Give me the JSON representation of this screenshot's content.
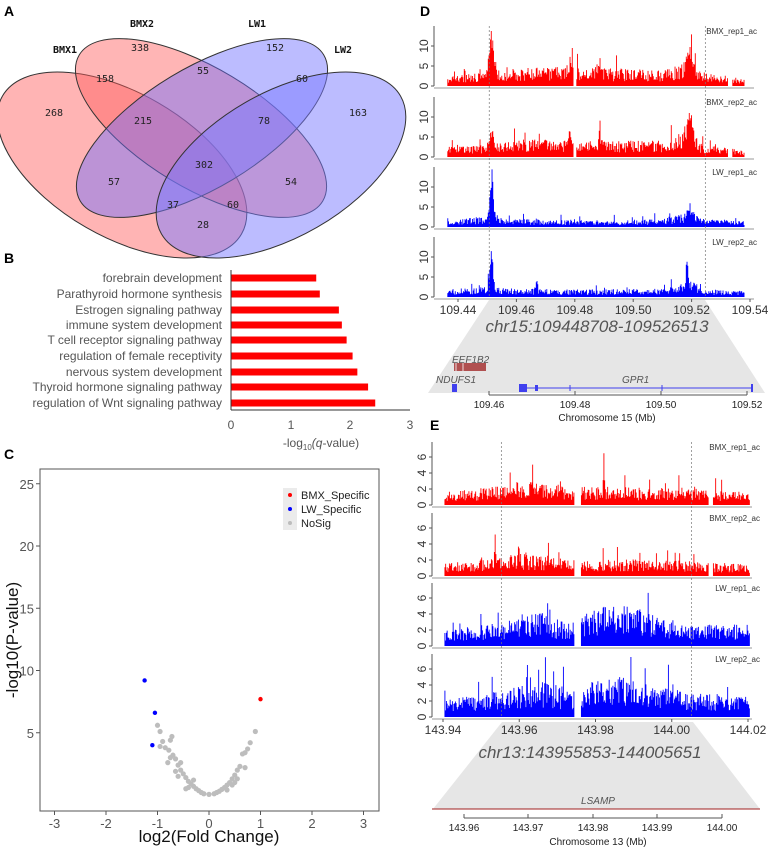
{
  "panels": {
    "a": "A",
    "b": "B",
    "c": "C",
    "d": "D",
    "e": "E"
  },
  "colors": {
    "bmx": "#ff0000",
    "lw": "#0000ff",
    "nosig": "#bdbdbd",
    "bmx_fill": "#ff6a6a",
    "lw_fill": "#6a6aff"
  },
  "chart_data": [
    {
      "type": "venn",
      "sets": [
        "BMX1",
        "BMX2",
        "LW1",
        "LW2"
      ],
      "regions": [
        {
          "sets": "BMX1",
          "count": "268"
        },
        {
          "sets": "BMX2",
          "count": "338"
        },
        {
          "sets": "LW1",
          "count": "152"
        },
        {
          "sets": "LW2",
          "count": "163"
        },
        {
          "sets": "BMX1&BMX2",
          "count": "158"
        },
        {
          "sets": "BMX2&LW1",
          "count": "55"
        },
        {
          "sets": "LW1&LW2",
          "count": "60"
        },
        {
          "sets": "BMX1&BMX2&LW1",
          "count": "215"
        },
        {
          "sets": "BMX2&LW1&LW2",
          "count": "78"
        },
        {
          "sets": "BMX1&BMX2&LW1&LW2",
          "count": "302"
        },
        {
          "sets": "BMX1&LW1",
          "count": "57"
        },
        {
          "sets": "BMX2&LW2",
          "count": "54"
        },
        {
          "sets": "BMX1&LW1&LW2",
          "count": "37"
        },
        {
          "sets": "BMX1&BMX2&LW2",
          "count": "60"
        },
        {
          "sets": "BMX1&LW2",
          "count": "28"
        }
      ]
    },
    {
      "type": "bar",
      "orientation": "horizontal",
      "categories": [
        "forebrain development",
        "Parathyroid hormone synthesis",
        "Estrogen signaling pathway",
        "immune system development",
        "T cell receptor signaling pathway",
        "regulation of female receptivity",
        "nervous system development",
        "Thyroid hormone signaling pathway",
        "regulation of Wnt signaling pathway"
      ],
      "values": [
        1.43,
        1.49,
        1.81,
        1.86,
        1.94,
        2.04,
        2.12,
        2.3,
        2.42
      ],
      "xlabel_pre": "-log",
      "xlabel_sub": "10",
      "xlabel_post": "(q-value)",
      "xticks": [
        "0",
        "1",
        "2",
        "3"
      ],
      "xlim": [
        0,
        3
      ]
    },
    {
      "type": "scatter",
      "xlabel": "log2(Fold Change)",
      "ylabel": "-log10(P-value)",
      "xlim": [
        -3.3,
        3.3
      ],
      "ylim": [
        -1.2,
        26.2
      ],
      "xticks": [
        "-3",
        "-2",
        "-1",
        "0",
        "1",
        "2",
        "3"
      ],
      "yticks": [
        "5",
        "10",
        "15",
        "20",
        "25"
      ],
      "legend": [
        "BMX_Specific",
        "LW_Specific",
        "NoSig"
      ],
      "legend_position": "top-right",
      "series": [
        {
          "name": "BMX_Specific",
          "points": [
            [
              1.0,
              7.7
            ]
          ]
        },
        {
          "name": "LW_Specific",
          "points": [
            [
              -1.25,
              9.2
            ],
            [
              -1.05,
              6.6
            ],
            [
              -1.1,
              4.0
            ]
          ]
        },
        {
          "name": "NoSig",
          "points": [
            [
              -1.0,
              5.6
            ],
            [
              -0.95,
              5.1
            ],
            [
              -0.9,
              4.3
            ],
            [
              -0.72,
              4.7
            ],
            [
              -0.75,
              4.4
            ],
            [
              -0.85,
              3.8
            ],
            [
              -0.95,
              3.9
            ],
            [
              -0.78,
              3.6
            ],
            [
              -0.7,
              3.2
            ],
            [
              -0.75,
              3.0
            ],
            [
              -0.65,
              2.9
            ],
            [
              -0.8,
              2.6
            ],
            [
              -0.6,
              2.4
            ],
            [
              -0.55,
              2.0
            ],
            [
              -0.5,
              1.7
            ],
            [
              -0.45,
              1.4
            ],
            [
              -0.4,
              1.1
            ],
            [
              -0.35,
              0.9
            ],
            [
              -0.3,
              0.7
            ],
            [
              -0.25,
              0.5
            ],
            [
              -0.2,
              0.35
            ],
            [
              -0.15,
              0.2
            ],
            [
              -0.1,
              0.1
            ],
            [
              0,
              0.05
            ],
            [
              0.1,
              0.1
            ],
            [
              0.15,
              0.2
            ],
            [
              0.2,
              0.3
            ],
            [
              0.25,
              0.45
            ],
            [
              0.3,
              0.6
            ],
            [
              0.35,
              0.8
            ],
            [
              0.4,
              1.0
            ],
            [
              0.45,
              1.3
            ],
            [
              0.5,
              1.6
            ],
            [
              0.55,
              2.0
            ],
            [
              0.6,
              2.3
            ],
            [
              0.65,
              3.3
            ],
            [
              0.7,
              3.4
            ],
            [
              0.75,
              3.7
            ],
            [
              0.8,
              4.2
            ],
            [
              0.9,
              5.1
            ],
            [
              0.7,
              2.2
            ],
            [
              -0.4,
              0.6
            ],
            [
              -0.6,
              1.5
            ],
            [
              0.5,
              1.0
            ],
            [
              -0.3,
              1.2
            ],
            [
              0.35,
              0.4
            ],
            [
              -0.55,
              2.6
            ],
            [
              -0.65,
              1.9
            ],
            [
              0.45,
              0.8
            ],
            [
              0.55,
              1.3
            ],
            [
              -0.45,
              0.5
            ]
          ]
        }
      ]
    },
    {
      "type": "genome_tracks",
      "region": "chr15:109448708-109526513",
      "xlim": [
        109.44,
        109.54
      ],
      "data_range": [
        109.4365,
        109.538
      ],
      "highlight": [
        109.4507,
        109.5247
      ],
      "xticks": [
        "109.44",
        "109.46",
        "109.48",
        "109.50",
        "109.52",
        "109.54"
      ],
      "yticks": [
        "0",
        "5",
        "10"
      ],
      "ymax": 15,
      "tracks": [
        {
          "name": "BMX_rep1_ac",
          "group": "BMX",
          "profile": [
            [
              109.4365,
              2
            ],
            [
              109.449,
              2.5
            ],
            [
              109.46,
              3.5
            ],
            [
              109.475,
              3.8
            ],
            [
              109.49,
              3.5
            ],
            [
              109.51,
              3
            ],
            [
              109.518,
              4.5
            ],
            [
              109.525,
              2.5
            ],
            [
              109.538,
              1.5
            ]
          ],
          "peaks": [
            [
              109.4515,
              13,
              0.0012
            ],
            [
              109.5195,
              6,
              0.0015
            ],
            [
              109.4885,
              4,
              0.0008
            ],
            [
              109.4785,
              3,
              0.0008
            ]
          ],
          "gaps": [
            [
              109.4795,
              109.4805
            ],
            [
              109.5325,
              109.534
            ]
          ]
        },
        {
          "name": "BMX_rep2_ac",
          "group": "BMX",
          "profile": [
            [
              109.4365,
              2
            ],
            [
              109.449,
              2.3
            ],
            [
              109.46,
              3.5
            ],
            [
              109.475,
              3.5
            ],
            [
              109.49,
              3.2
            ],
            [
              109.51,
              3.2
            ],
            [
              109.518,
              5
            ],
            [
              109.525,
              2.3
            ],
            [
              109.538,
              1.3
            ]
          ],
          "peaks": [
            [
              109.4515,
              4,
              0.0012
            ],
            [
              109.5195,
              8,
              0.0012
            ],
            [
              109.4885,
              7,
              0.0004
            ],
            [
              109.4785,
              4,
              0.0008
            ]
          ],
          "gaps": [
            [
              109.4795,
              109.4805
            ],
            [
              109.5325,
              109.534
            ]
          ]
        },
        {
          "name": "LW_rep1_ac",
          "group": "LW",
          "profile": [
            [
              109.4365,
              1.5
            ],
            [
              109.449,
              2
            ],
            [
              109.46,
              1.5
            ],
            [
              109.49,
              1.3
            ],
            [
              109.51,
              1.5
            ],
            [
              109.52,
              3
            ],
            [
              109.525,
              1.5
            ],
            [
              109.538,
              1.2
            ]
          ],
          "peaks": [
            [
              109.4515,
              13,
              0.0009
            ],
            [
              109.5195,
              3,
              0.0012
            ]
          ],
          "gaps": []
        },
        {
          "name": "LW_rep2_ac",
          "group": "LW",
          "profile": [
            [
              109.4365,
              1.5
            ],
            [
              109.449,
              2
            ],
            [
              109.46,
              1.6
            ],
            [
              109.49,
              1.5
            ],
            [
              109.51,
              1.6
            ],
            [
              109.52,
              3
            ],
            [
              109.525,
              1.5
            ],
            [
              109.538,
              1.2
            ]
          ],
          "peaks": [
            [
              109.4515,
              13,
              0.0008
            ],
            [
              109.5185,
              7,
              0.0006
            ],
            [
              109.467,
              3,
              0.0004
            ]
          ],
          "gaps": []
        }
      ],
      "genes": [
        {
          "name": "EEF1B2",
          "strand_color": "#b05050"
        },
        {
          "name": "NDUFS1",
          "strand_color": "#4040ee"
        },
        {
          "name": "GPR1",
          "strand_color": "#4040ee"
        }
      ],
      "zoom_xticks": [
        "109.46",
        "109.48",
        "109.50",
        "109.52"
      ],
      "zoom_xlabel": "Chromosome 15 (Mb)"
    },
    {
      "type": "genome_tracks",
      "region": "chr13:143955853-144005651",
      "xlim": [
        143.94,
        144.02
      ],
      "data_range": [
        143.9405,
        144.0205
      ],
      "highlight": [
        143.9553,
        144.0052
      ],
      "xticks": [
        "143.94",
        "143.96",
        "143.98",
        "144.00",
        "144.02"
      ],
      "yticks": [
        "0",
        "2",
        "4",
        "6"
      ],
      "ymax": 7.5,
      "tracks": [
        {
          "name": "BMX_rep1_ac",
          "group": "BMX",
          "profile": [
            [
              143.9405,
              1.3
            ],
            [
              143.955,
              1.8
            ],
            [
              143.96,
              2.3
            ],
            [
              143.975,
              1.8
            ],
            [
              143.99,
              1.7
            ],
            [
              144.005,
              1.6
            ],
            [
              144.0205,
              1.2
            ]
          ],
          "peaks": [
            [
              143.9822,
              5.2,
              0.0002
            ]
          ],
          "gaps": [
            [
              143.9745,
              143.9763
            ],
            [
              144.0096,
              144.0108
            ]
          ]
        },
        {
          "name": "BMX_rep2_ac",
          "group": "BMX",
          "profile": [
            [
              143.9405,
              1.2
            ],
            [
              143.955,
              1.8
            ],
            [
              143.96,
              2.2
            ],
            [
              143.975,
              1.5
            ],
            [
              143.99,
              1.6
            ],
            [
              144.005,
              1.5
            ],
            [
              144.0205,
              1.1
            ]
          ],
          "peaks": [
            [
              143.9537,
              5.5,
              0.0002
            ],
            [
              143.9598,
              3,
              0.0003
            ]
          ],
          "gaps": [
            [
              143.9745,
              143.9763
            ],
            [
              144.0096,
              144.0108
            ]
          ]
        },
        {
          "name": "LW_rep1_ac",
          "group": "LW",
          "profile": [
            [
              143.9405,
              1.5
            ],
            [
              143.955,
              2.3
            ],
            [
              143.965,
              3.2
            ],
            [
              143.973,
              2.2
            ],
            [
              143.977,
              3
            ],
            [
              143.985,
              4.3
            ],
            [
              143.995,
              3.2
            ],
            [
              144.005,
              2
            ],
            [
              144.0205,
              2.2
            ]
          ],
          "peaks": [
            [
              143.966,
              3,
              0.0002
            ]
          ],
          "gaps": [
            [
              143.9745,
              143.9763
            ]
          ]
        },
        {
          "name": "LW_rep2_ac",
          "group": "LW",
          "profile": [
            [
              143.9405,
              1.6
            ],
            [
              143.955,
              2.5
            ],
            [
              143.965,
              3.5
            ],
            [
              143.973,
              2.5
            ],
            [
              143.977,
              3.2
            ],
            [
              143.985,
              4
            ],
            [
              143.995,
              3.3
            ],
            [
              144.005,
              2.3
            ],
            [
              144.0205,
              2
            ]
          ],
          "peaks": [
            [
              143.9715,
              3.5,
              0.0002
            ],
            [
              143.993,
              3,
              0.0002
            ]
          ],
          "gaps": [
            [
              143.9745,
              143.9763
            ]
          ]
        }
      ],
      "genes": [
        {
          "name": "LSAMP",
          "strand_color": "#a02020"
        }
      ],
      "zoom_xticks": [
        "143.96",
        "143.97",
        "143.98",
        "143.99",
        "144.00"
      ],
      "zoom_xlabel": "Chromosome 13 (Mb)"
    }
  ]
}
